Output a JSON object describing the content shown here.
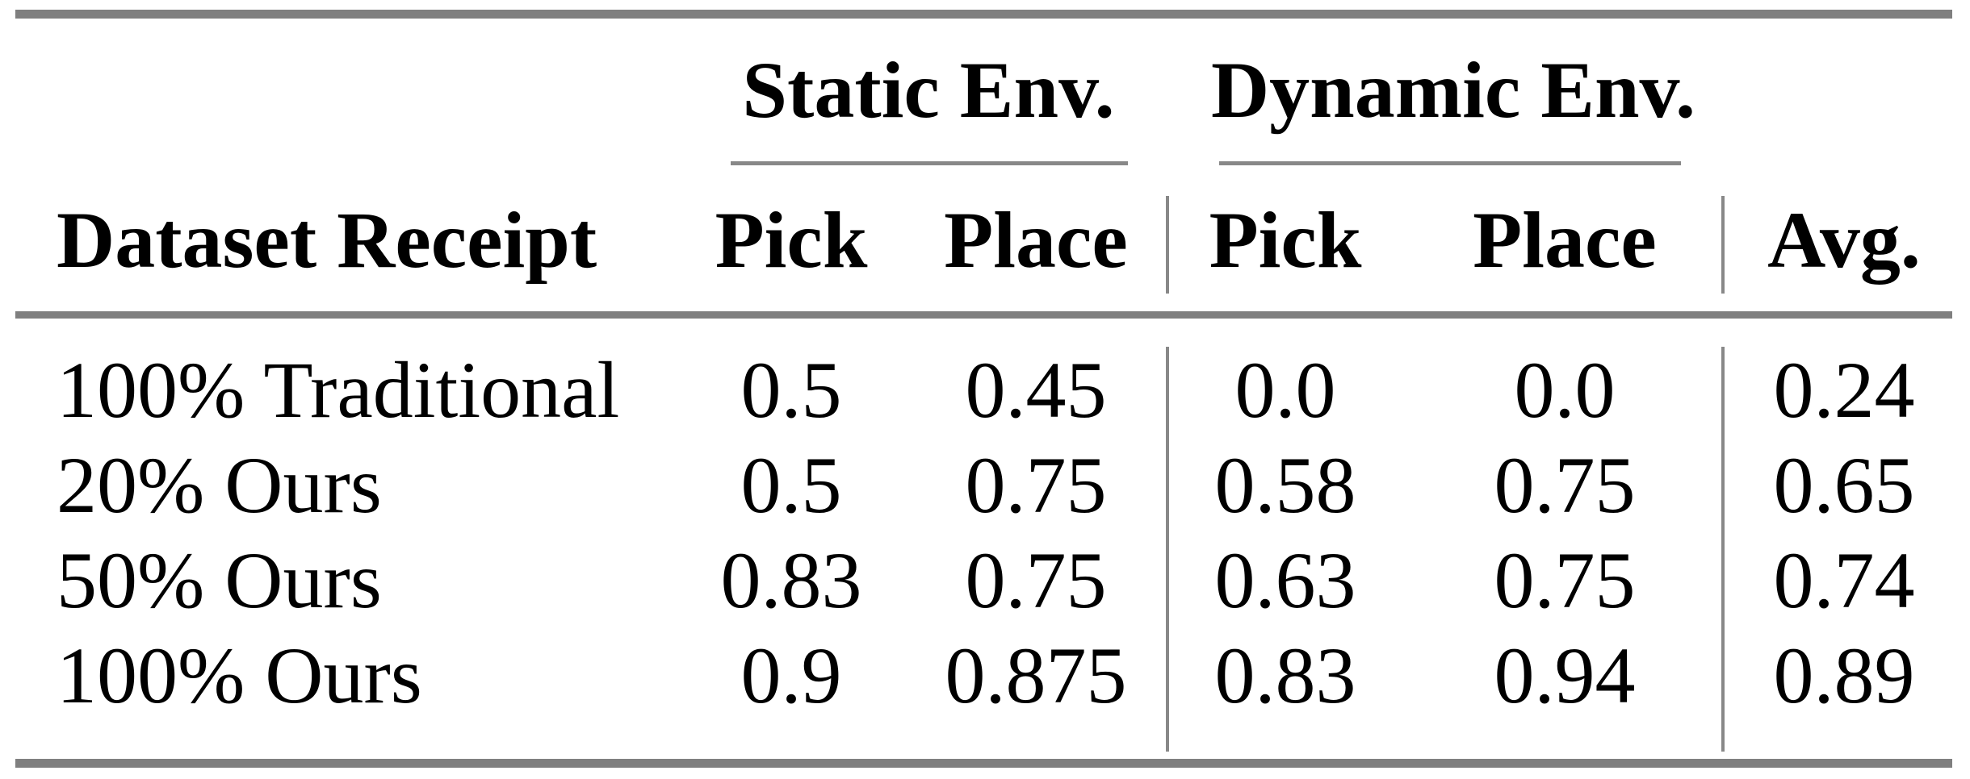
{
  "table": {
    "group_headers": [
      {
        "label": "Static Env.",
        "spans_columns": [
          "Pick",
          "Place"
        ]
      },
      {
        "label": "Dynamic Env.",
        "spans_columns": [
          "Pick",
          "Place"
        ]
      }
    ],
    "columns": [
      "Dataset Receipt",
      "Pick",
      "Place",
      "Pick",
      "Place",
      "Avg."
    ],
    "rows": [
      {
        "cells": [
          "100% Traditional",
          "0.5",
          "0.45",
          "0.0",
          "0.0",
          "0.24"
        ]
      },
      {
        "cells": [
          "20% Ours",
          "0.5",
          "0.75",
          "0.58",
          "0.75",
          "0.65"
        ]
      },
      {
        "cells": [
          "50% Ours",
          "0.83",
          "0.75",
          "0.63",
          "0.75",
          "0.74"
        ]
      },
      {
        "cells": [
          "100% Ours",
          "0.9",
          "0.875",
          "0.83",
          "0.94",
          "0.89"
        ]
      }
    ],
    "colors": {
      "rule_gray": "#808080",
      "separator_gray": "#888888",
      "text": "#000000",
      "background": "#ffffff"
    }
  },
  "chart_data": {
    "type": "table",
    "title": "",
    "group_headers": [
      "Static Env.",
      "Dynamic Env."
    ],
    "columns": [
      "Dataset Receipt",
      "Static Pick",
      "Static Place",
      "Dynamic Pick",
      "Dynamic Place",
      "Avg."
    ],
    "rows": [
      [
        "100% Traditional",
        0.5,
        0.45,
        0.0,
        0.0,
        0.24
      ],
      [
        "20% Ours",
        0.5,
        0.75,
        0.58,
        0.75,
        0.65
      ],
      [
        "50% Ours",
        0.83,
        0.75,
        0.63,
        0.75,
        0.74
      ],
      [
        "100% Ours",
        0.9,
        0.875,
        0.83,
        0.94,
        0.89
      ]
    ]
  }
}
